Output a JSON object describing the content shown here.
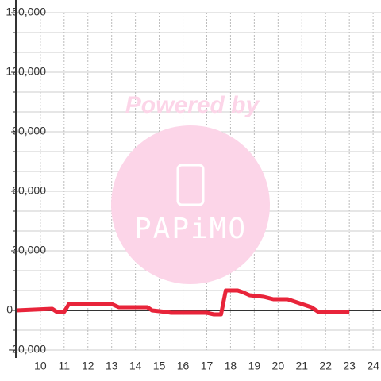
{
  "chart_data": {
    "type": "line",
    "watermark": {
      "top": "Powered by",
      "bottom": "PAPiMO"
    },
    "x": [
      9.0,
      10.5,
      10.7,
      11.0,
      11.2,
      13.0,
      13.3,
      14.5,
      14.7,
      15.3,
      15.5,
      17.0,
      17.3,
      17.6,
      17.8,
      18.3,
      18.5,
      18.8,
      19.4,
      19.8,
      20.4,
      20.7,
      21.0,
      21.4,
      21.7,
      23.0
    ],
    "series": [
      {
        "color": "#e8243a",
        "values": [
          0,
          800,
          -800,
          -800,
          3200,
          3200,
          1600,
          1600,
          0,
          -800,
          -1200,
          -1200,
          -2000,
          -2000,
          10000,
          10000,
          9200,
          7600,
          6800,
          5600,
          5600,
          4400,
          3200,
          1600,
          -800,
          -800
        ]
      }
    ],
    "xlim": [
      8.97,
      24.33
    ],
    "xticks": [
      10,
      11,
      12,
      13,
      14,
      15,
      16,
      17,
      18,
      19,
      20,
      21,
      22,
      23,
      24
    ],
    "ylim": [
      -20000,
      150000
    ],
    "yticks": [
      {
        "value": -20000,
        "label": "-20,000"
      },
      0,
      {
        "value": 30000,
        "label": "30,000"
      },
      {
        "value": 60000,
        "label": "60,000"
      },
      {
        "value": 90000,
        "label": "90,000"
      },
      {
        "value": 120000,
        "label": "120,000"
      },
      {
        "value": 150000,
        "label": "150,000"
      }
    ],
    "y_minor_ticks": [
      -10000,
      10000,
      20000,
      40000,
      50000,
      70000,
      80000,
      100000,
      110000,
      130000,
      140000
    ],
    "grid": true
  }
}
